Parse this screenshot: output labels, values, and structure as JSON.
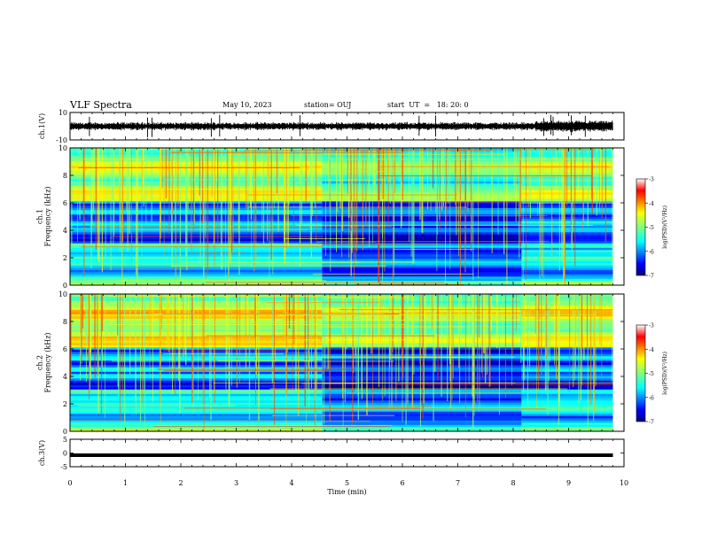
{
  "header": {
    "title": "VLF Spectra",
    "date": "May 10, 2023",
    "station": "station= OUJ",
    "start": "start  UT  =   18: 20: 0"
  },
  "chart_data": [
    {
      "type": "line",
      "panel": "ch1-waveform",
      "ylabel": "ch.1(V)",
      "ylim": [
        -10,
        10
      ],
      "yticks": [
        "10",
        "-10"
      ],
      "x": [
        0,
        9.8
      ],
      "baseline": 0,
      "series_color": "#000000"
    },
    {
      "type": "heatmap",
      "panel": "ch1-spectrogram",
      "ylabel": "ch.1\nFrequency (kHz)",
      "ylim": [
        0,
        10
      ],
      "yticks": [
        "0",
        "2",
        "4",
        "6",
        "8",
        "10"
      ],
      "xlim": [
        0,
        10
      ],
      "data_end_min": 9.8,
      "segment_boundaries_min": [
        4.55,
        8.15
      ],
      "colorbar": {
        "label": "log(PSD)(V²/Hz)",
        "range": [
          -7,
          -3
        ],
        "ticks": [
          "-3",
          "-4",
          "-5",
          "-6",
          "-7"
        ]
      }
    },
    {
      "type": "heatmap",
      "panel": "ch2-spectrogram",
      "ylabel": "ch.2\nFrequency (kHz)",
      "ylim": [
        0,
        10
      ],
      "yticks": [
        "0",
        "2",
        "4",
        "6",
        "8",
        "10"
      ],
      "xlim": [
        0,
        10
      ],
      "data_end_min": 9.8,
      "segment_boundaries_min": [
        4.55,
        8.15
      ],
      "colorbar": {
        "label": "log(PSD)(V²/Hz)",
        "range": [
          -7,
          -3
        ],
        "ticks": [
          "-3",
          "-4",
          "-5",
          "-6",
          "-7"
        ]
      }
    },
    {
      "type": "line",
      "panel": "ch3-waveform",
      "ylabel": "ch.3(V)",
      "ylim": [
        -5,
        5
      ],
      "yticks": [
        "5",
        "0",
        "-5"
      ],
      "x": [
        0,
        9.8
      ],
      "level": -0.8,
      "series_color": "#000000"
    }
  ],
  "xaxis": {
    "label": "Time  (min)",
    "range": [
      0,
      10
    ],
    "ticks": [
      "0",
      "1",
      "2",
      "3",
      "4",
      "5",
      "6",
      "7",
      "8",
      "9",
      "10"
    ]
  }
}
